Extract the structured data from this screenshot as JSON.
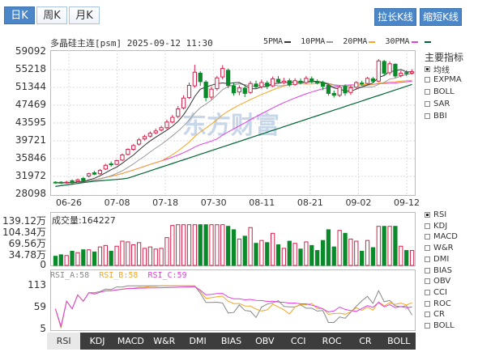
{
  "tabs": [
    {
      "label": "日K",
      "active": true
    },
    {
      "label": "周K",
      "active": false
    },
    {
      "label": "月K",
      "active": false
    }
  ],
  "buttons": {
    "stretch": "拉长K线",
    "shorten": "缩短K线"
  },
  "header": {
    "title": "多晶硅主连[psm] 2025-09-12 11:30"
  },
  "ma_legend": [
    {
      "label": "5PMA",
      "color": "#333333"
    },
    {
      "label": "10PMA",
      "color": "#999999"
    },
    {
      "label": "20PMA",
      "color": "#f5a623"
    },
    {
      "label": "30PMA",
      "color": "#e040e0"
    },
    {
      "label": "",
      "color": "#006633"
    }
  ],
  "indicators": {
    "title": "主要指标",
    "items": [
      {
        "label": "均线",
        "checked": true
      },
      {
        "label": "EXPMA",
        "checked": false
      },
      {
        "label": "BOLL",
        "checked": false
      },
      {
        "label": "SAR",
        "checked": false
      },
      {
        "label": "BBI",
        "checked": false
      }
    ]
  },
  "sub_indicators": [
    {
      "label": "RSI",
      "checked": true
    },
    {
      "label": "KDJ",
      "checked": false
    },
    {
      "label": "MACD",
      "checked": false
    },
    {
      "label": "W&R",
      "checked": false
    },
    {
      "label": "DMI",
      "checked": false
    },
    {
      "label": "BIAS",
      "checked": false
    },
    {
      "label": "OBV",
      "checked": false
    },
    {
      "label": "CCI",
      "checked": false
    },
    {
      "label": "ROC",
      "checked": false
    },
    {
      "label": "CR",
      "checked": false
    },
    {
      "label": "BOLL",
      "checked": false
    }
  ],
  "volume": {
    "title": "成交量:164227"
  },
  "rsi": {
    "a": "RSI_A:58",
    "b": "RSI_B:58",
    "c": "RSI_C:59",
    "a_color": "#888888",
    "b_color": "#f5a623",
    "c_color": "#e040e0"
  },
  "bottom_tabs": [
    "RSI",
    "KDJ",
    "MACD",
    "W&R",
    "DMI",
    "BIAS",
    "OBV",
    "CCI",
    "ROC",
    "CR",
    "BOLL"
  ],
  "colors": {
    "up": "#d6204a",
    "down": "#0a8a2a",
    "ma5": "#333333",
    "ma10": "#999999",
    "ma20": "#f5a623",
    "ma30": "#e040e0",
    "ma60": "#006633",
    "watermark": "#c8d6ea"
  },
  "watermark": "东方财富",
  "chart_data": [
    {
      "type": "candlestick",
      "y_ticks": [
        "59092",
        "55218",
        "51344",
        "47469",
        "43595",
        "39721",
        "35846",
        "31972",
        "28098"
      ],
      "ylim": [
        28098,
        59092
      ],
      "x_ticks": [
        "06-26",
        "07-08",
        "07-18",
        "07-30",
        "08-11",
        "08-21",
        "09-02",
        "09-12"
      ],
      "candles": [
        [
          31000,
          30900,
          31200,
          30700
        ],
        [
          31000,
          30800,
          31200,
          30600
        ],
        [
          30900,
          31000,
          31300,
          30700
        ],
        [
          31300,
          30900,
          31600,
          30700
        ],
        [
          31200,
          31500,
          31800,
          31000
        ],
        [
          31800,
          31300,
          32100,
          31100
        ],
        [
          32300,
          32800,
          33000,
          32000
        ],
        [
          33000,
          32700,
          33400,
          32500
        ],
        [
          32800,
          33500,
          33800,
          32600
        ],
        [
          33800,
          34600,
          34900,
          33600
        ],
        [
          34900,
          34700,
          35400,
          34300
        ],
        [
          34800,
          35600,
          35800,
          34600
        ],
        [
          35700,
          36800,
          37100,
          35500
        ],
        [
          36900,
          38000,
          38200,
          36700
        ],
        [
          38000,
          38800,
          39100,
          37700
        ],
        [
          39100,
          40000,
          40400,
          38800
        ],
        [
          40200,
          40700,
          41100,
          39900
        ],
        [
          40800,
          41400,
          41800,
          40500
        ],
        [
          41500,
          41900,
          42400,
          41200
        ],
        [
          42100,
          42600,
          43000,
          41800
        ],
        [
          42600,
          43800,
          44300,
          42300
        ],
        [
          43800,
          44800,
          45300,
          43500
        ],
        [
          45000,
          46600,
          47200,
          44600
        ],
        [
          46800,
          48900,
          49500,
          46500
        ],
        [
          49000,
          51600,
          52200,
          48700
        ],
        [
          51500,
          54400,
          56000,
          51100
        ],
        [
          54200,
          52400,
          54600,
          51500
        ],
        [
          52300,
          49000,
          52700,
          48200
        ],
        [
          49100,
          50800,
          51400,
          48600
        ],
        [
          50900,
          53200,
          53600,
          50500
        ],
        [
          53400,
          55200,
          55900,
          52900
        ],
        [
          54800,
          51600,
          55200,
          51000
        ],
        [
          51500,
          50000,
          52200,
          49400
        ],
        [
          50200,
          51100,
          51600,
          49500
        ],
        [
          51000,
          49900,
          51400,
          49100
        ],
        [
          50100,
          52000,
          52500,
          49800
        ],
        [
          51900,
          51300,
          52600,
          50800
        ],
        [
          51300,
          52200,
          52800,
          50900
        ],
        [
          52100,
          51400,
          52600,
          50800
        ],
        [
          51500,
          53000,
          53500,
          51200
        ],
        [
          52900,
          52300,
          53600,
          52000
        ],
        [
          52200,
          52500,
          53200,
          51800
        ],
        [
          52600,
          51700,
          53100,
          51300
        ],
        [
          51800,
          52600,
          53100,
          51500
        ],
        [
          52500,
          52200,
          53100,
          51800
        ],
        [
          52200,
          53100,
          53600,
          51900
        ],
        [
          53000,
          52400,
          53500,
          52000
        ],
        [
          52400,
          52100,
          52900,
          51800
        ],
        [
          52200,
          51400,
          52600,
          50600
        ],
        [
          51600,
          49900,
          52000,
          49400
        ],
        [
          49900,
          49500,
          50500,
          49000
        ],
        [
          49500,
          51200,
          51600,
          49100
        ],
        [
          51400,
          50000,
          51800,
          49400
        ],
        [
          50100,
          51100,
          51600,
          49600
        ],
        [
          51200,
          52200,
          52500,
          50800
        ],
        [
          52100,
          51900,
          52600,
          51500
        ],
        [
          52000,
          53100,
          53400,
          51700
        ],
        [
          53000,
          52500,
          53400,
          52100
        ],
        [
          52500,
          56800,
          57200,
          52300
        ],
        [
          56700,
          54200,
          57000,
          53700
        ],
        [
          54300,
          56200,
          56700,
          53800
        ],
        [
          56100,
          53600,
          56300,
          53200
        ],
        [
          53700,
          54200,
          54800,
          53300
        ],
        [
          54300,
          54100,
          54800,
          53600
        ],
        [
          54200,
          54500,
          55000,
          53900
        ]
      ]
    },
    {
      "type": "bar",
      "title": "成交量:164227",
      "y_ticks": [
        "139.12万",
        "104.34万",
        "69.56万",
        "34.78万",
        "0"
      ],
      "ylim": [
        0,
        1391200
      ]
    },
    {
      "type": "line",
      "series_names": [
        "RSI_A",
        "RSI_B",
        "RSI_C"
      ],
      "y_ticks": [
        "113",
        "59",
        "5"
      ],
      "ylim": [
        5,
        113
      ]
    }
  ]
}
